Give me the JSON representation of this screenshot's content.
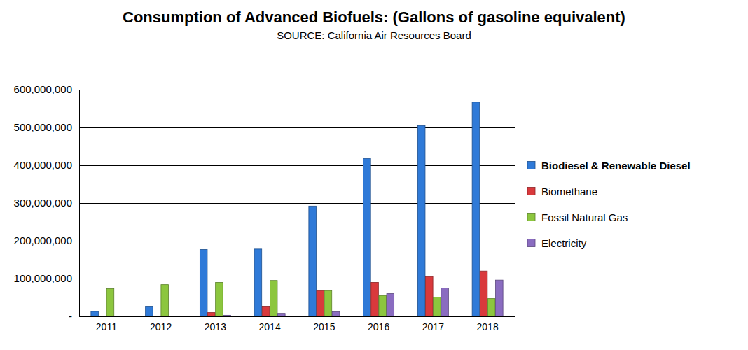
{
  "chart_data": {
    "type": "bar",
    "title": "Consumption of Advanced Biofuels: (Gallons of gasoline equivalent)",
    "subtitle": "SOURCE: California Air Resources Board",
    "categories": [
      "2011",
      "2012",
      "2013",
      "2014",
      "2015",
      "2016",
      "2017",
      "2018"
    ],
    "series": [
      {
        "name": "Biodiesel & Renewable Diesel",
        "color": "#2f7ad8",
        "values": [
          13000000,
          27000000,
          177000000,
          178000000,
          292000000,
          418000000,
          505000000,
          567000000
        ]
      },
      {
        "name": "Biomethane",
        "color": "#d9393c",
        "values": [
          0,
          0,
          10000000,
          27000000,
          68000000,
          90000000,
          105000000,
          120000000
        ]
      },
      {
        "name": "Fossil Natural Gas",
        "color": "#8cc63e",
        "values": [
          73000000,
          84000000,
          90000000,
          95000000,
          68000000,
          55000000,
          51000000,
          47000000
        ]
      },
      {
        "name": "Electricity",
        "color": "#8a6cc0",
        "values": [
          0,
          0,
          3000000,
          8000000,
          12000000,
          60000000,
          75000000,
          96000000
        ]
      }
    ],
    "ylim": [
      0,
      600000000
    ],
    "yticks": [
      {
        "value": 0,
        "label": "-"
      },
      {
        "value": 100000000,
        "label": "100,000,000"
      },
      {
        "value": 200000000,
        "label": "200,000,000"
      },
      {
        "value": 300000000,
        "label": "300,000,000"
      },
      {
        "value": 400000000,
        "label": "400,000,000"
      },
      {
        "value": 500000000,
        "label": "500,000,000"
      },
      {
        "value": 600000000,
        "label": "600,000,000"
      }
    ],
    "grid": true,
    "legend": "right"
  }
}
